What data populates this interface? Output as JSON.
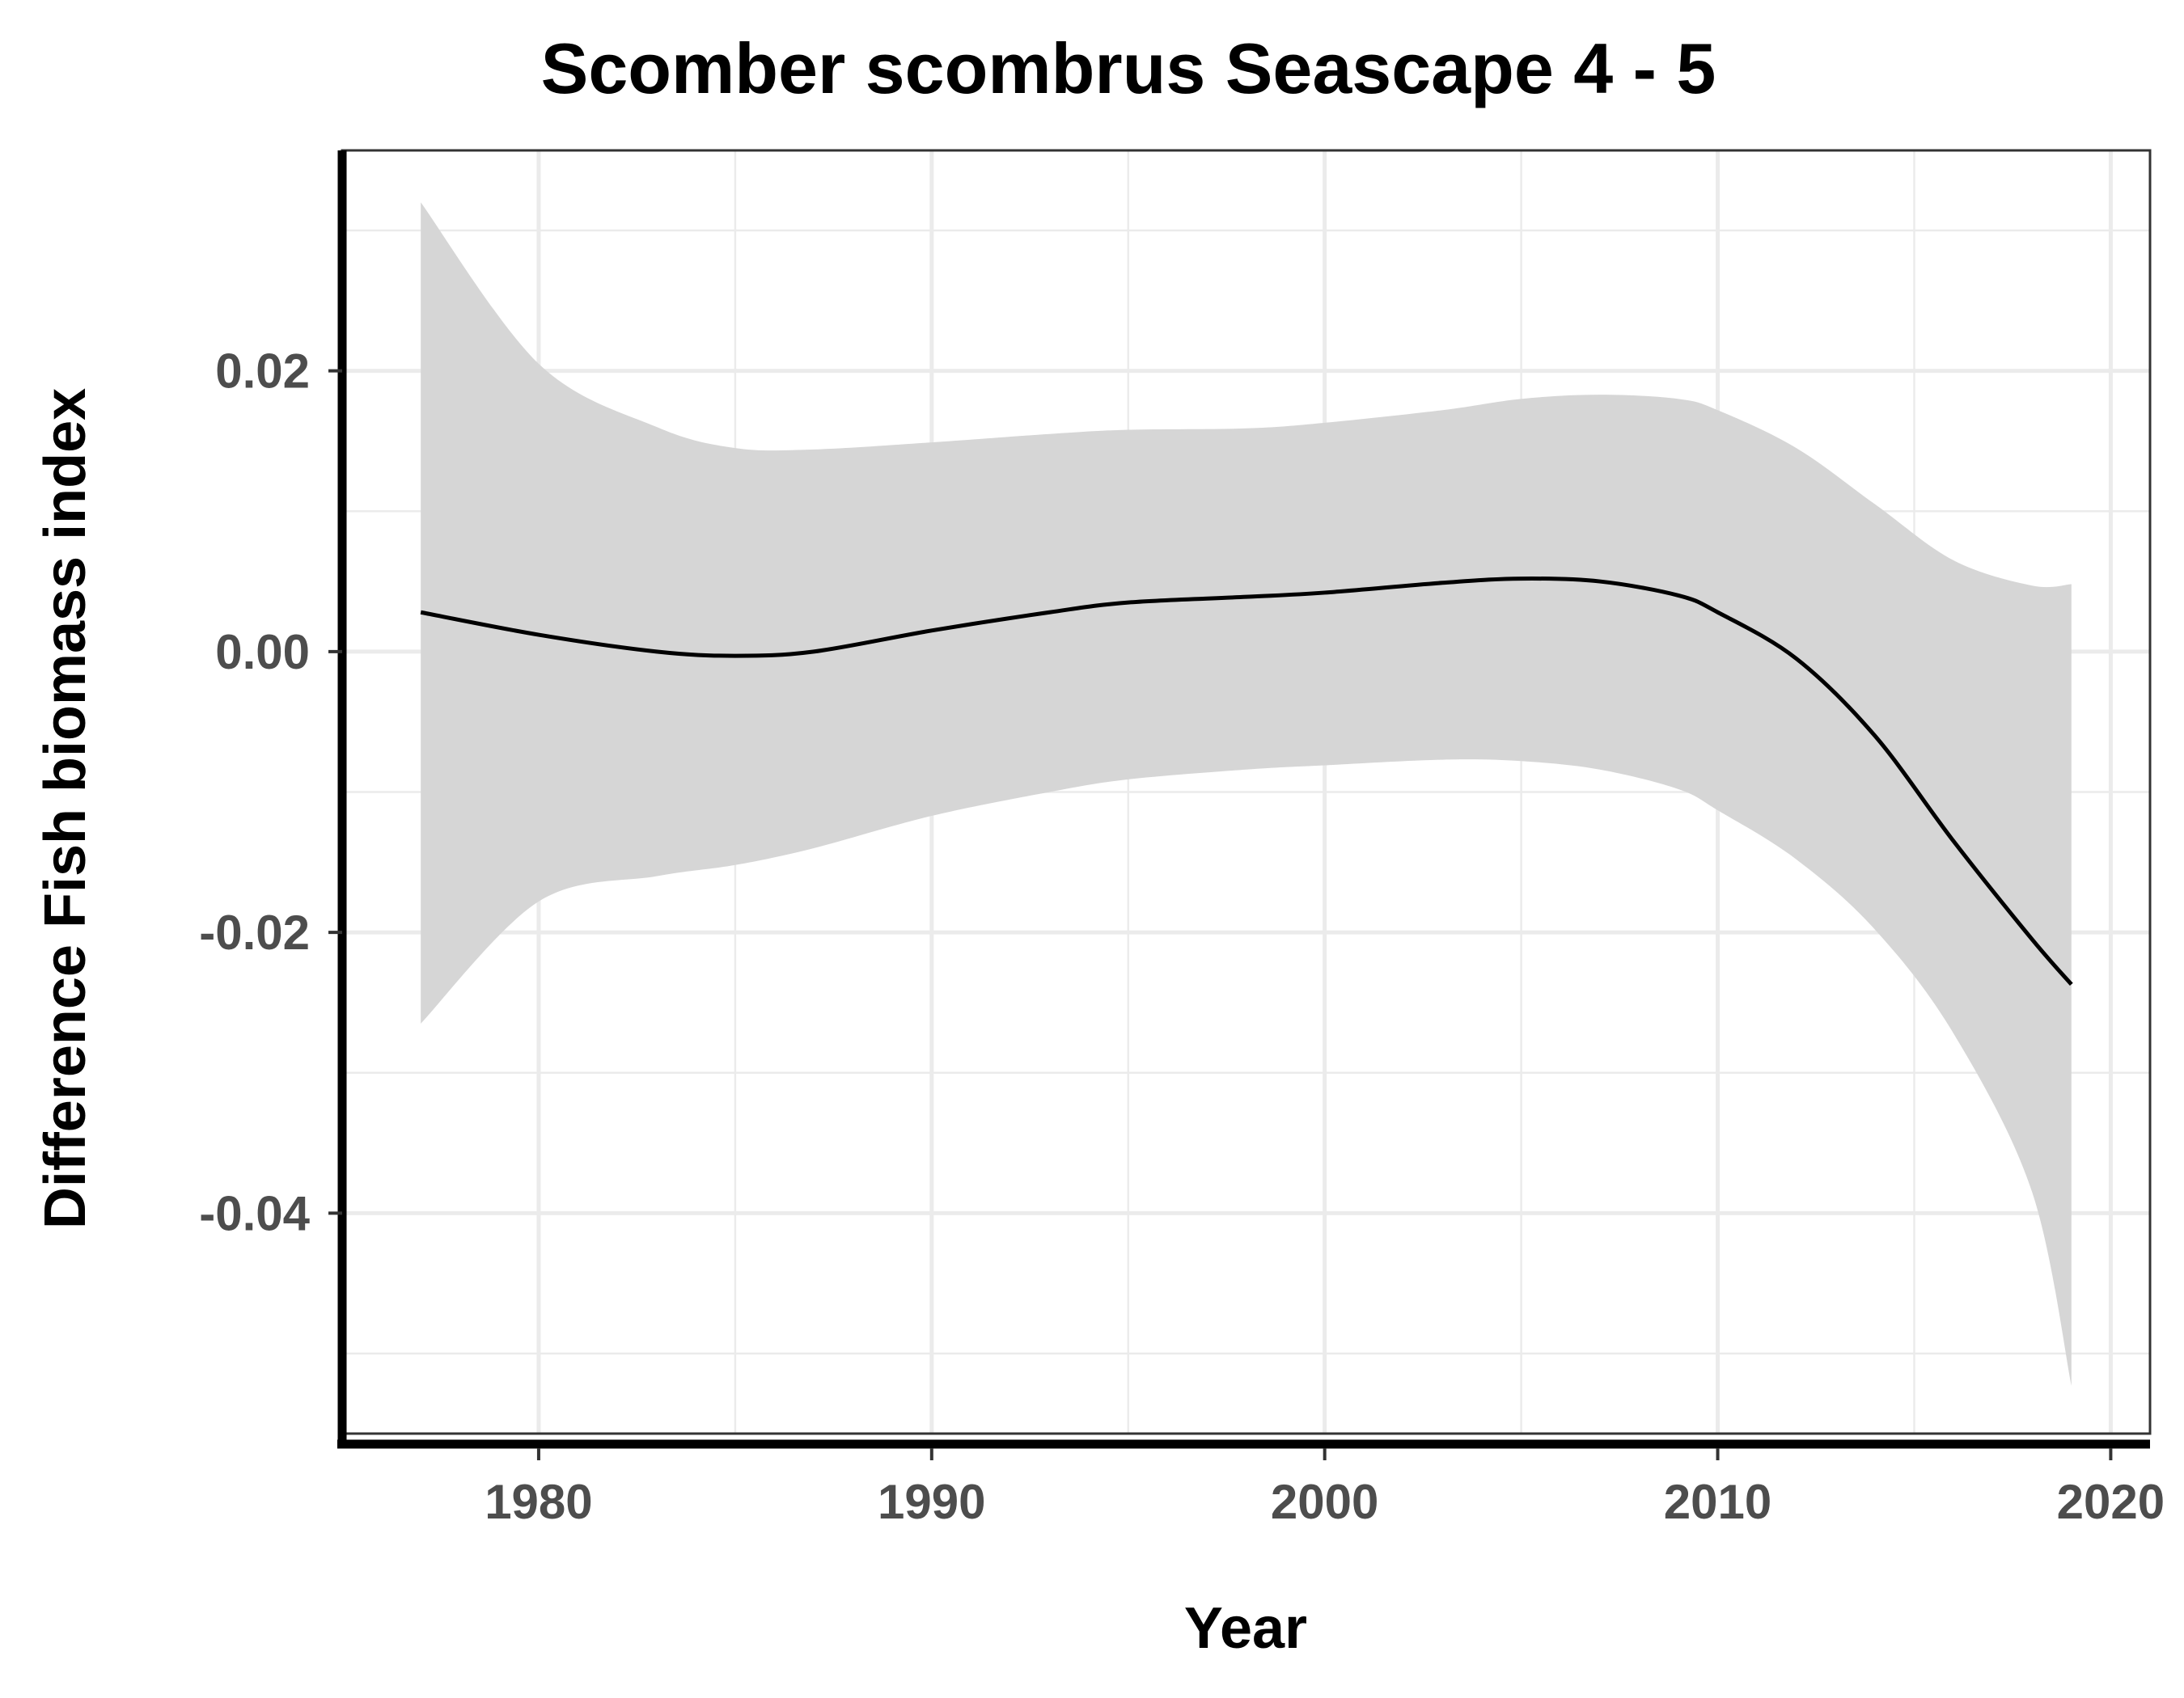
{
  "chart_data": {
    "type": "line",
    "title": "Scomber scombrus Seascape 4 - 5",
    "xlabel": "Year",
    "ylabel": "Difference Fish biomass index",
    "xlim": [
      1975,
      2021
    ],
    "ylim": [
      -0.0557,
      0.0357
    ],
    "x_ticks": [
      1980,
      1990,
      2000,
      2010,
      2020
    ],
    "x_tick_labels": [
      "1980",
      "1990",
      "2000",
      "2010",
      "2020"
    ],
    "y_ticks": [
      -0.04,
      -0.02,
      0.0,
      0.02
    ],
    "y_tick_labels": [
      "-0.04",
      "-0.02",
      "0.00",
      "0.02"
    ],
    "grid": true,
    "legend": false,
    "colors": {
      "line": "#000000",
      "band": "#d6d6d6",
      "grid": "#ebebeb",
      "tick_text": "#4d4d4d"
    },
    "series": [
      {
        "x": [
          1977,
          1980,
          1983,
          1985,
          1987,
          1990,
          1993,
          1995,
          1998,
          2000,
          2003,
          2005,
          2007,
          2009,
          2010,
          2012,
          2014,
          2016,
          2018,
          2019
        ],
        "y": [
          0.0028,
          0.0012,
          0.0,
          -0.0003,
          0.0,
          0.0015,
          0.0028,
          0.0035,
          0.0039,
          0.0042,
          0.0049,
          0.0052,
          0.005,
          0.004,
          0.0028,
          -0.0005,
          -0.006,
          -0.0135,
          -0.0205,
          -0.0237
        ],
        "lower": [
          -0.0265,
          -0.0178,
          -0.016,
          -0.0152,
          -0.014,
          -0.0117,
          -0.01,
          -0.0091,
          -0.0084,
          -0.0081,
          -0.0077,
          -0.0078,
          -0.0084,
          -0.0098,
          -0.0113,
          -0.0148,
          -0.0198,
          -0.0272,
          -0.0385,
          -0.0523
        ],
        "upper": [
          0.032,
          0.0205,
          0.016,
          0.0145,
          0.0144,
          0.0149,
          0.0155,
          0.0158,
          0.0159,
          0.0163,
          0.0172,
          0.018,
          0.0183,
          0.018,
          0.0172,
          0.0145,
          0.0105,
          0.0065,
          0.0047,
          0.0048
        ]
      }
    ]
  }
}
